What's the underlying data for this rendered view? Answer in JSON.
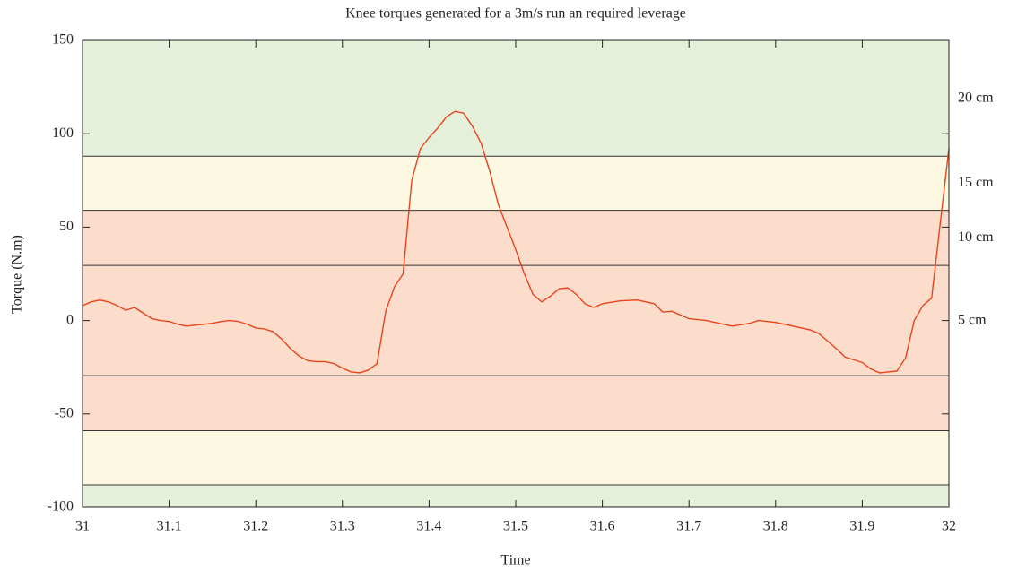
{
  "chart_data": {
    "type": "line",
    "title": "Knee torques generated for a 3m/s run an required leverage",
    "x_label": "Time",
    "y_label": "Torque (N.m)",
    "xlim": [
      31,
      32
    ],
    "xticks": [
      31,
      31.1,
      31.2,
      31.3,
      31.4,
      31.5,
      31.6,
      31.7,
      31.8,
      31.9,
      32
    ],
    "ylim": [
      -100,
      150
    ],
    "yticks": [
      -100,
      -50,
      0,
      50,
      100,
      150
    ],
    "leverage_levels": [
      {
        "label": "5 cm",
        "limit": 29.5,
        "color": "#fcdccb"
      },
      {
        "label": "10 cm",
        "limit": 59,
        "color": "#fcdccb"
      },
      {
        "label": "15 cm",
        "limit": 88,
        "color": "#fcf8e2"
      },
      {
        "label": "20 cm",
        "color": "#e5f0db"
      }
    ],
    "series": [
      {
        "color": "#e8441c",
        "x": [
          31.0,
          31.01,
          31.02,
          31.03,
          31.04,
          31.05,
          31.06,
          31.07,
          31.08,
          31.09,
          31.1,
          31.11,
          31.12,
          31.13,
          31.14,
          31.15,
          31.16,
          31.17,
          31.18,
          31.19,
          31.2,
          31.21,
          31.22,
          31.23,
          31.24,
          31.25,
          31.26,
          31.27,
          31.28,
          31.29,
          31.3,
          31.31,
          31.32,
          31.33,
          31.34,
          31.35,
          31.36,
          31.37,
          31.38,
          31.39,
          31.4,
          31.41,
          31.42,
          31.43,
          31.44,
          31.45,
          31.46,
          31.47,
          31.48,
          31.49,
          31.5,
          31.51,
          31.52,
          31.53,
          31.54,
          31.55,
          31.56,
          31.57,
          31.58,
          31.59,
          31.6,
          31.62,
          31.64,
          31.66,
          31.67,
          31.68,
          31.69,
          31.7,
          31.72,
          31.74,
          31.75,
          31.77,
          31.78,
          31.8,
          31.82,
          31.84,
          31.85,
          31.86,
          31.87,
          31.88,
          31.89,
          31.9,
          31.91,
          31.92,
          31.93,
          31.94,
          31.95,
          31.96,
          31.97,
          31.98,
          31.99,
          32.0
        ],
        "values": [
          8,
          10,
          11,
          10,
          8,
          5.5,
          7,
          4,
          1,
          0,
          -0.5,
          -2,
          -3,
          -2.5,
          -2,
          -1.5,
          -0.5,
          0,
          -0.5,
          -2,
          -4,
          -4.5,
          -6,
          -10,
          -15,
          -19,
          -21.5,
          -22,
          -22,
          -23,
          -25.5,
          -27.5,
          -28,
          -26.5,
          -23,
          5,
          18,
          25,
          75,
          92,
          98,
          103,
          109,
          112,
          111,
          104,
          95,
          80,
          62,
          50,
          38,
          25,
          14,
          10,
          13,
          17,
          17.5,
          14,
          9,
          7,
          9,
          10.5,
          11,
          9,
          4.5,
          5,
          3,
          1,
          0,
          -2,
          -3,
          -1.5,
          0,
          -1,
          -3,
          -5,
          -7,
          -11,
          -15,
          -19.5,
          -21,
          -22.5,
          -26,
          -28,
          -27.5,
          -27,
          -20,
          0,
          8,
          12,
          52,
          92
        ]
      }
    ]
  }
}
